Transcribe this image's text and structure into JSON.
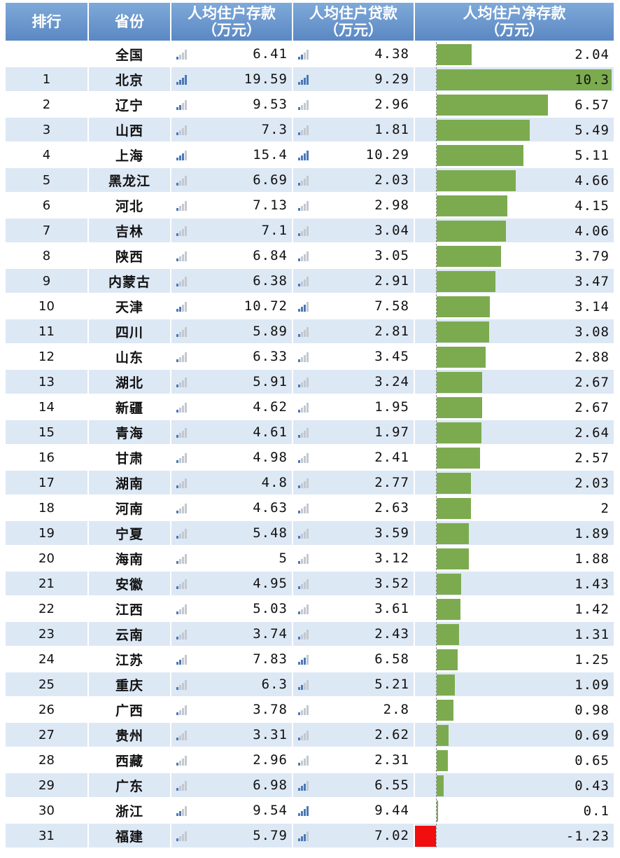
{
  "headers": {
    "rank": "排行",
    "province": "省份",
    "deposit": [
      "人均住户存款",
      "（万元）"
    ],
    "loan": [
      "人均住户贷款",
      "（万元）"
    ],
    "net": [
      "人均住户净存款",
      "（万元）"
    ]
  },
  "colors": {
    "header": "#6a96cc",
    "row_alt": "#dde8f5",
    "bar_positive": "#7cab4f",
    "bar_negative": "#f00e0e",
    "signal_strong": "#4a78b8",
    "signal_weak": "#c3c8cf"
  },
  "icons": {
    "signal": "signal-bars-icon"
  },
  "chart_data": {
    "type": "table",
    "columns": [
      "排行",
      "省份",
      "人均住户存款（万元）",
      "人均住户贷款（万元）",
      "人均住户净存款（万元）"
    ],
    "rows": [
      {
        "rank": "",
        "province": "全国",
        "deposit": "6.41",
        "loan": "4.38",
        "net": "2.04",
        "net_value": 2.04
      },
      {
        "rank": "1",
        "province": "北京",
        "deposit": "19.59",
        "loan": "9.29",
        "net": "10.3",
        "net_value": 10.3
      },
      {
        "rank": "2",
        "province": "辽宁",
        "deposit": "9.53",
        "loan": "2.96",
        "net": "6.57",
        "net_value": 6.57
      },
      {
        "rank": "3",
        "province": "山西",
        "deposit": "7.3",
        "loan": "1.81",
        "net": "5.49",
        "net_value": 5.49
      },
      {
        "rank": "4",
        "province": "上海",
        "deposit": "15.4",
        "loan": "10.29",
        "net": "5.11",
        "net_value": 5.11
      },
      {
        "rank": "5",
        "province": "黑龙江",
        "deposit": "6.69",
        "loan": "2.03",
        "net": "4.66",
        "net_value": 4.66
      },
      {
        "rank": "6",
        "province": "河北",
        "deposit": "7.13",
        "loan": "2.98",
        "net": "4.15",
        "net_value": 4.15
      },
      {
        "rank": "7",
        "province": "吉林",
        "deposit": "7.1",
        "loan": "3.04",
        "net": "4.06",
        "net_value": 4.06
      },
      {
        "rank": "8",
        "province": "陕西",
        "deposit": "6.84",
        "loan": "3.05",
        "net": "3.79",
        "net_value": 3.79
      },
      {
        "rank": "9",
        "province": "内蒙古",
        "deposit": "6.38",
        "loan": "2.91",
        "net": "3.47",
        "net_value": 3.47
      },
      {
        "rank": "10",
        "province": "天津",
        "deposit": "10.72",
        "loan": "7.58",
        "net": "3.14",
        "net_value": 3.14
      },
      {
        "rank": "11",
        "province": "四川",
        "deposit": "5.89",
        "loan": "2.81",
        "net": "3.08",
        "net_value": 3.08
      },
      {
        "rank": "12",
        "province": "山东",
        "deposit": "6.33",
        "loan": "3.45",
        "net": "2.88",
        "net_value": 2.88
      },
      {
        "rank": "13",
        "province": "湖北",
        "deposit": "5.91",
        "loan": "3.24",
        "net": "2.67",
        "net_value": 2.67
      },
      {
        "rank": "14",
        "province": "新疆",
        "deposit": "4.62",
        "loan": "1.95",
        "net": "2.67",
        "net_value": 2.67
      },
      {
        "rank": "15",
        "province": "青海",
        "deposit": "4.61",
        "loan": "1.97",
        "net": "2.64",
        "net_value": 2.64
      },
      {
        "rank": "16",
        "province": "甘肃",
        "deposit": "4.98",
        "loan": "2.41",
        "net": "2.57",
        "net_value": 2.57
      },
      {
        "rank": "17",
        "province": "湖南",
        "deposit": "4.8",
        "loan": "2.77",
        "net": "2.03",
        "net_value": 2.03
      },
      {
        "rank": "18",
        "province": "河南",
        "deposit": "4.63",
        "loan": "2.63",
        "net": "2",
        "net_value": 2
      },
      {
        "rank": "19",
        "province": "宁夏",
        "deposit": "5.48",
        "loan": "3.59",
        "net": "1.89",
        "net_value": 1.89
      },
      {
        "rank": "20",
        "province": "海南",
        "deposit": "5",
        "loan": "3.12",
        "net": "1.88",
        "net_value": 1.88
      },
      {
        "rank": "21",
        "province": "安徽",
        "deposit": "4.95",
        "loan": "3.52",
        "net": "1.43",
        "net_value": 1.43
      },
      {
        "rank": "22",
        "province": "江西",
        "deposit": "5.03",
        "loan": "3.61",
        "net": "1.42",
        "net_value": 1.42
      },
      {
        "rank": "23",
        "province": "云南",
        "deposit": "3.74",
        "loan": "2.43",
        "net": "1.31",
        "net_value": 1.31
      },
      {
        "rank": "24",
        "province": "江苏",
        "deposit": "7.83",
        "loan": "6.58",
        "net": "1.25",
        "net_value": 1.25
      },
      {
        "rank": "25",
        "province": "重庆",
        "deposit": "6.3",
        "loan": "5.21",
        "net": "1.09",
        "net_value": 1.09
      },
      {
        "rank": "26",
        "province": "广西",
        "deposit": "3.78",
        "loan": "2.8",
        "net": "0.98",
        "net_value": 0.98
      },
      {
        "rank": "27",
        "province": "贵州",
        "deposit": "3.31",
        "loan": "2.62",
        "net": "0.69",
        "net_value": 0.69
      },
      {
        "rank": "28",
        "province": "西藏",
        "deposit": "2.96",
        "loan": "2.31",
        "net": "0.65",
        "net_value": 0.65
      },
      {
        "rank": "29",
        "province": "广东",
        "deposit": "6.98",
        "loan": "6.55",
        "net": "0.43",
        "net_value": 0.43
      },
      {
        "rank": "30",
        "province": "浙江",
        "deposit": "9.54",
        "loan": "9.44",
        "net": "0.1",
        "net_value": 0.1
      },
      {
        "rank": "31",
        "province": "福建",
        "deposit": "5.79",
        "loan": "7.02",
        "net": "-1.23",
        "net_value": -1.23
      }
    ],
    "net_range": [
      -1.23,
      10.3
    ]
  }
}
